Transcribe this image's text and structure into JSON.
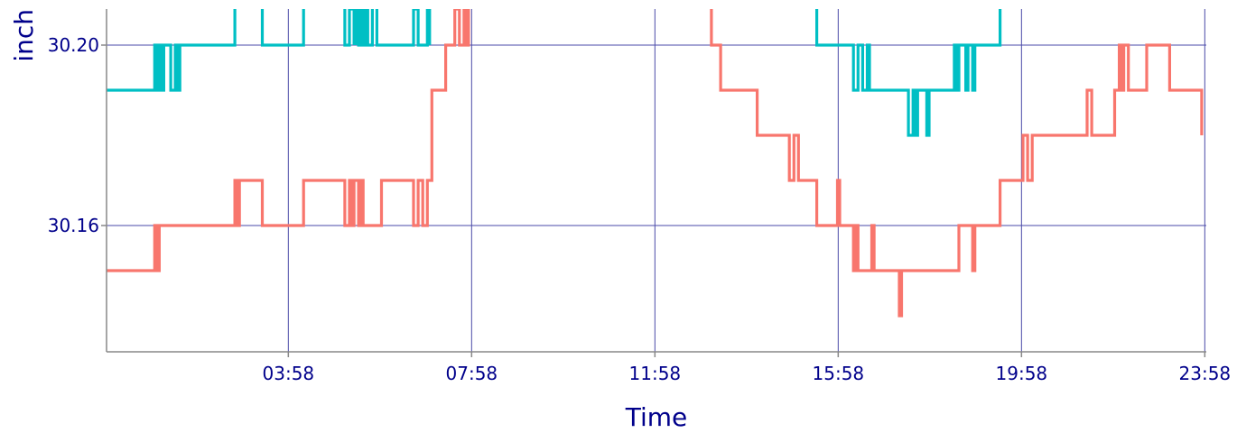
{
  "chart_data": {
    "type": "line",
    "xlabel": "Time",
    "ylabel": "inch",
    "x_unit": "hours",
    "xlim": [
      0.0,
      24.0
    ],
    "ylim": [
      30.132,
      30.208
    ],
    "x_ticks": [
      {
        "value": 3.967,
        "label": "03:58"
      },
      {
        "value": 7.967,
        "label": "07:58"
      },
      {
        "value": 11.967,
        "label": "11:58"
      },
      {
        "value": 15.967,
        "label": "15:58"
      },
      {
        "value": 19.967,
        "label": "19:58"
      },
      {
        "value": 23.967,
        "label": "23:58"
      }
    ],
    "y_ticks": [
      {
        "value": 30.16,
        "label": "30.16"
      },
      {
        "value": 30.2,
        "label": "30.20"
      }
    ],
    "grid": true,
    "series": [
      {
        "color": "#00bfc4",
        "segments": [
          {
            "x": [
              0.0,
              1.05,
              1.05,
              1.1,
              1.1,
              1.15,
              1.15,
              1.2,
              1.2,
              1.25,
              1.25,
              1.4,
              1.4,
              1.5,
              1.5,
              1.55,
              1.55,
              1.6,
              1.6,
              1.65,
              1.65,
              2.8,
              2.8
            ],
            "y": [
              30.19,
              30.19,
              30.2,
              30.2,
              30.19,
              30.19,
              30.2,
              30.2,
              30.19,
              30.19,
              30.2,
              30.2,
              30.19,
              30.19,
              30.2,
              30.2,
              30.19,
              30.19,
              30.2,
              30.2,
              30.2,
              30.2,
              30.208
            ]
          },
          {
            "x": [
              3.4,
              3.4,
              4.3,
              4.3
            ],
            "y": [
              30.208,
              30.2,
              30.2,
              30.208
            ]
          },
          {
            "x": [
              5.2,
              5.2,
              5.3,
              5.3,
              5.4,
              5.4
            ],
            "y": [
              30.208,
              30.2,
              30.2,
              30.208,
              30.208,
              30.2
            ]
          },
          {
            "x": [
              5.45,
              5.45,
              5.5,
              5.5,
              5.55,
              5.55,
              5.6,
              5.6,
              5.65,
              5.65,
              5.7,
              5.7,
              5.8,
              5.8
            ],
            "y": [
              30.2,
              30.208,
              30.208,
              30.2,
              30.2,
              30.208,
              30.208,
              30.2,
              30.2,
              30.208,
              30.208,
              30.2,
              30.2,
              30.208
            ]
          },
          {
            "x": [
              5.9,
              5.9,
              6.7,
              6.7,
              6.8,
              6.8,
              7.0,
              7.0,
              7.05,
              7.05
            ],
            "y": [
              30.208,
              30.2,
              30.2,
              30.208,
              30.208,
              30.2,
              30.2,
              30.208,
              30.208,
              30.2
            ]
          },
          {
            "x": [
              15.5,
              15.5,
              16.3,
              16.3,
              16.4,
              16.4,
              16.5,
              16.5,
              16.6,
              16.6,
              16.65,
              16.65,
              16.7,
              16.7,
              17.5,
              17.5,
              17.6,
              17.6,
              17.65,
              17.65,
              17.7,
              17.7,
              17.9,
              17.9,
              17.95,
              17.95,
              18.2,
              18.2,
              18.5,
              18.5,
              18.55,
              18.55,
              18.6,
              18.6,
              18.75,
              18.75,
              18.8,
              18.8,
              18.9,
              18.9,
              18.95,
              18.95,
              19.5,
              19.5
            ],
            "y": [
              30.208,
              30.2,
              30.2,
              30.19,
              30.19,
              30.2,
              30.2,
              30.19,
              30.19,
              30.2,
              30.2,
              30.19,
              30.19,
              30.19,
              30.19,
              30.18,
              30.18,
              30.19,
              30.19,
              30.18,
              30.18,
              30.19,
              30.19,
              30.18,
              30.18,
              30.19,
              30.19,
              30.19,
              30.19,
              30.2,
              30.2,
              30.19,
              30.19,
              30.2,
              30.2,
              30.19,
              30.19,
              30.2,
              30.2,
              30.19,
              30.19,
              30.2,
              30.2,
              30.208
            ]
          }
        ]
      },
      {
        "color": "#f8766d",
        "segments": [
          {
            "x": [
              0.0,
              1.05,
              1.05,
              1.1,
              1.1,
              1.15,
              1.15,
              2.8,
              2.8,
              2.85,
              2.85,
              2.9,
              2.9,
              3.4,
              3.4,
              4.3,
              4.3,
              5.2,
              5.2,
              5.3,
              5.3,
              5.35,
              5.35,
              5.4,
              5.4,
              5.5,
              5.5,
              5.55,
              5.55,
              5.6,
              5.6,
              6.0,
              6.0,
              6.7,
              6.7,
              6.8,
              6.8,
              6.9,
              6.9,
              7.0,
              7.0,
              7.1,
              7.1,
              7.4,
              7.4,
              7.6,
              7.6,
              7.7,
              7.7,
              7.8,
              7.8,
              7.85,
              7.85,
              7.9,
              7.9
            ],
            "y": [
              30.15,
              30.15,
              30.16,
              30.16,
              30.15,
              30.15,
              30.16,
              30.16,
              30.17,
              30.17,
              30.16,
              30.16,
              30.17,
              30.17,
              30.16,
              30.16,
              30.17,
              30.17,
              30.16,
              30.16,
              30.17,
              30.17,
              30.16,
              30.16,
              30.17,
              30.17,
              30.16,
              30.16,
              30.17,
              30.17,
              30.16,
              30.16,
              30.17,
              30.17,
              30.16,
              30.16,
              30.17,
              30.17,
              30.16,
              30.16,
              30.17,
              30.17,
              30.19,
              30.19,
              30.2,
              30.2,
              30.208,
              30.208,
              30.2,
              30.2,
              30.208,
              30.208,
              30.2,
              30.2,
              30.208
            ]
          },
          {
            "x": [
              13.2,
              13.2,
              13.4,
              13.4,
              14.2,
              14.2,
              14.9,
              14.9,
              15.0,
              15.0,
              15.1,
              15.1,
              15.5,
              15.5,
              15.95,
              15.95,
              16.0,
              16.0,
              16.3,
              16.3,
              16.35,
              16.35,
              16.4,
              16.4,
              16.7,
              16.7,
              16.75,
              16.75,
              16.8,
              16.8,
              17.3,
              17.3,
              17.35,
              17.35,
              18.6,
              18.6,
              18.9,
              18.9,
              18.95,
              18.95,
              19.5,
              19.5,
              20.0,
              20.0,
              20.1,
              20.1,
              20.2,
              20.2,
              21.4,
              21.4,
              21.5,
              21.5,
              22.0,
              22.0,
              22.1,
              22.1,
              22.15,
              22.15,
              22.2,
              22.2,
              22.3,
              22.3,
              22.7,
              22.7,
              23.2,
              23.2,
              23.9,
              23.9
            ],
            "y": [
              30.208,
              30.2,
              30.2,
              30.19,
              30.19,
              30.18,
              30.18,
              30.17,
              30.17,
              30.18,
              30.18,
              30.17,
              30.17,
              30.16,
              30.16,
              30.17,
              30.17,
              30.16,
              30.16,
              30.15,
              30.15,
              30.16,
              30.16,
              30.15,
              30.15,
              30.16,
              30.16,
              30.15,
              30.15,
              30.15,
              30.15,
              30.14,
              30.14,
              30.15,
              30.15,
              30.16,
              30.16,
              30.15,
              30.15,
              30.16,
              30.16,
              30.17,
              30.17,
              30.18,
              30.18,
              30.17,
              30.17,
              30.18,
              30.18,
              30.19,
              30.19,
              30.18,
              30.18,
              30.19,
              30.19,
              30.2,
              30.2,
              30.19,
              30.19,
              30.2,
              30.2,
              30.19,
              30.19,
              30.2,
              30.2,
              30.19,
              30.19,
              30.18
            ]
          }
        ]
      }
    ]
  }
}
